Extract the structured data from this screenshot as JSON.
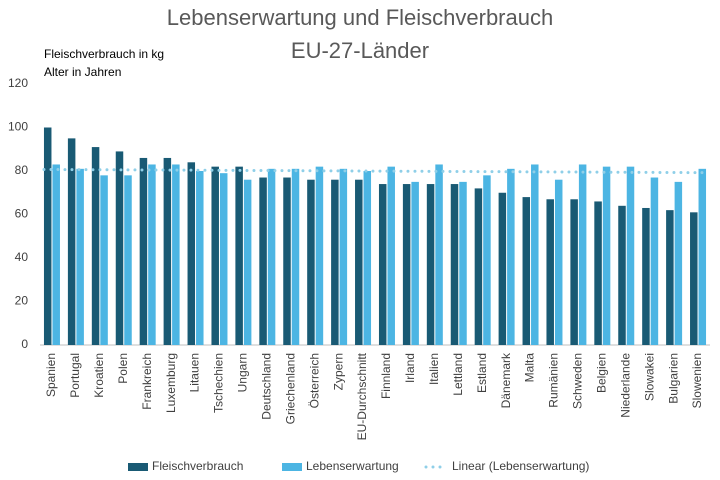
{
  "chart_data": {
    "type": "bar",
    "title": [
      "Lebenserwartung und Fleischverbrauch",
      "EU-27-Länder"
    ],
    "annotations": [
      "Fleischverbrauch in kg",
      "Alter in Jahren"
    ],
    "categories": [
      "Spanien",
      "Portugal",
      "Kroatien",
      "Polen",
      "Frankreich",
      "Luxemburg",
      "Litauen",
      "Tschechien",
      "Ungarn",
      "Deutschland",
      "Griechenland",
      "Österreich",
      "Zypern",
      "EU-Durchschnitt",
      "Finnland",
      "Irland",
      "Italien",
      "Lettland",
      "Estland",
      "Dänemark",
      "Malta",
      "Rumänien",
      "Schweden",
      "Belgien",
      "Niederlande",
      "Slowakei",
      "Bulgarien",
      "Slowenien"
    ],
    "series": [
      {
        "name": "Fleischverbrauch",
        "color": "#195a74",
        "values": [
          100,
          95,
          91,
          89,
          86,
          86,
          84,
          82,
          82,
          77,
          77,
          76,
          76,
          76,
          74,
          74,
          74,
          74,
          72,
          70,
          68,
          67,
          67,
          66,
          64,
          63,
          62,
          61
        ]
      },
      {
        "name": "Lebenserwartung",
        "color": "#4cb5e3",
        "values": [
          83,
          81,
          78,
          78,
          83,
          83,
          80,
          79,
          76,
          81,
          81,
          82,
          81,
          80,
          82,
          75,
          83,
          75,
          78,
          81,
          83,
          76,
          83,
          82,
          82,
          77,
          75,
          81
        ]
      }
    ],
    "trendline": {
      "name": "Linear (Lebenserwartung)",
      "color": "#8fcfe8"
    },
    "ylim": [
      0,
      120
    ],
    "yticks": [
      0,
      20,
      40,
      60,
      80,
      100,
      120
    ],
    "grid": false
  }
}
